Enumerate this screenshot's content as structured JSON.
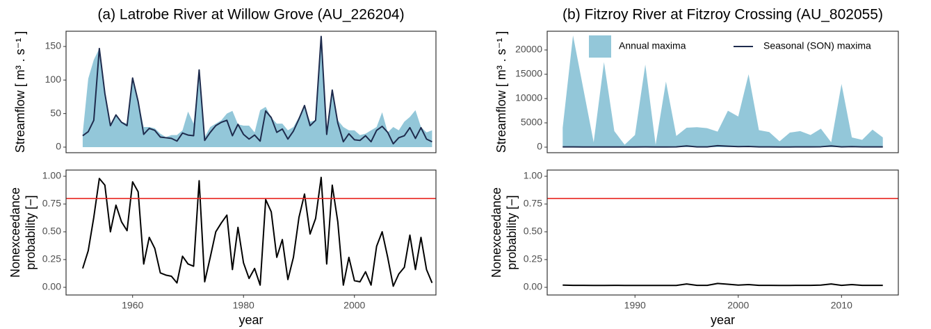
{
  "chart_data": [
    {
      "type": "line",
      "title": "(a) Latrobe River at Willow Grove (AU_226204)",
      "ylabel": "Streamflow [ m³ . s⁻¹ ]",
      "x": [
        1951,
        1952,
        1953,
        1954,
        1955,
        1956,
        1957,
        1958,
        1959,
        1960,
        1961,
        1962,
        1963,
        1964,
        1965,
        1966,
        1967,
        1968,
        1969,
        1970,
        1971,
        1972,
        1973,
        1974,
        1975,
        1976,
        1977,
        1978,
        1979,
        1980,
        1981,
        1982,
        1983,
        1984,
        1985,
        1986,
        1987,
        1988,
        1989,
        1990,
        1991,
        1992,
        1993,
        1994,
        1995,
        1996,
        1997,
        1998,
        1999,
        2000,
        2001,
        2002,
        2003,
        2004,
        2005,
        2006,
        2007,
        2008,
        2009,
        2010,
        2011,
        2012,
        2013,
        2014
      ],
      "series": [
        {
          "kind": "area",
          "color": "#93c7d9",
          "values": [
            20,
            102,
            130,
            147,
            85,
            35,
            48,
            38,
            35,
            103,
            70,
            30,
            30,
            28,
            20,
            15,
            18,
            18,
            25,
            53,
            35,
            115,
            15,
            30,
            35,
            40,
            50,
            54,
            34,
            32,
            32,
            22,
            55,
            60,
            44,
            35,
            35,
            25,
            30,
            45,
            62,
            38,
            40,
            165,
            20,
            85,
            40,
            30,
            25,
            25,
            18,
            20,
            25,
            30,
            52,
            22,
            30,
            25,
            38,
            45,
            55,
            30,
            22,
            25
          ]
        },
        {
          "kind": "line",
          "color": "#1e2b4d",
          "values": [
            17,
            23,
            40,
            147,
            80,
            32,
            48,
            37,
            32,
            103,
            68,
            19,
            28,
            25,
            15,
            14,
            13,
            9,
            21,
            18,
            17,
            115,
            10,
            22,
            32,
            37,
            40,
            17,
            34,
            19,
            12,
            18,
            9,
            54,
            44,
            22,
            27,
            12,
            24,
            42,
            62,
            32,
            40,
            165,
            19,
            85,
            36,
            8,
            20,
            11,
            10,
            17,
            8,
            25,
            31,
            22,
            5,
            14,
            17,
            29,
            13,
            29,
            12,
            8
          ]
        }
      ],
      "xlim": [
        1948,
        2014.7
      ],
      "ylim": [
        -8.3,
        172.7
      ],
      "yticks": [
        0,
        50,
        100,
        150
      ]
    },
    {
      "type": "line",
      "ylabel": [
        "Nonexceedance",
        "probability [−]"
      ],
      "xlabel": "year",
      "x": [
        1951,
        1952,
        1953,
        1954,
        1955,
        1956,
        1957,
        1958,
        1959,
        1960,
        1961,
        1962,
        1963,
        1964,
        1965,
        1966,
        1967,
        1968,
        1969,
        1970,
        1971,
        1972,
        1973,
        1974,
        1975,
        1976,
        1977,
        1978,
        1979,
        1980,
        1981,
        1982,
        1983,
        1984,
        1985,
        1986,
        1987,
        1988,
        1989,
        1990,
        1991,
        1992,
        1993,
        1994,
        1995,
        1996,
        1997,
        1998,
        1999,
        2000,
        2001,
        2002,
        2003,
        2004,
        2005,
        2006,
        2007,
        2008,
        2009,
        2010,
        2011,
        2012,
        2013,
        2014
      ],
      "series": [
        {
          "kind": "line",
          "color": "#000000",
          "values": [
            0.17,
            0.33,
            0.63,
            0.98,
            0.92,
            0.5,
            0.74,
            0.59,
            0.51,
            0.95,
            0.86,
            0.21,
            0.45,
            0.35,
            0.13,
            0.11,
            0.1,
            0.04,
            0.28,
            0.21,
            0.19,
            0.96,
            0.05,
            0.27,
            0.5,
            0.58,
            0.65,
            0.16,
            0.54,
            0.22,
            0.08,
            0.17,
            0.02,
            0.79,
            0.68,
            0.27,
            0.43,
            0.07,
            0.27,
            0.63,
            0.84,
            0.48,
            0.62,
            0.99,
            0.21,
            0.92,
            0.59,
            0.02,
            0.27,
            0.06,
            0.05,
            0.14,
            0.02,
            0.37,
            0.5,
            0.27,
            0.01,
            0.12,
            0.18,
            0.47,
            0.16,
            0.45,
            0.16,
            0.04
          ]
        }
      ],
      "hline": {
        "value": 0.8,
        "color": "#e8241f"
      },
      "xlim": [
        1948,
        2014.7
      ],
      "xticks": [
        1960,
        1980,
        2000
      ],
      "ylim": [
        -0.069,
        1.056
      ],
      "yticks": [
        {
          "value": 0,
          "label": "0.00"
        },
        {
          "value": 0.25,
          "label": "0.25"
        },
        {
          "value": 0.5,
          "label": "0.50"
        },
        {
          "value": 0.75,
          "label": "0.75"
        },
        {
          "value": 1,
          "label": "1.00"
        }
      ]
    },
    {
      "type": "line",
      "title": "(b) Fitzroy River at Fitzroy Crossing (AU_802055)",
      "ylabel": "Streamflow [ m³ . s⁻¹ ]",
      "x": [
        1983,
        1984,
        1985,
        1986,
        1987,
        1988,
        1989,
        1990,
        1991,
        1992,
        1993,
        1994,
        1995,
        1996,
        1997,
        1998,
        1999,
        2000,
        2001,
        2002,
        2003,
        2004,
        2005,
        2006,
        2007,
        2008,
        2009,
        2010,
        2011,
        2012,
        2013,
        2014
      ],
      "series": [
        {
          "kind": "area",
          "name": "Annual maxima",
          "color": "#93c7d9",
          "values": [
            4000,
            23000,
            12000,
            1000,
            17500,
            3300,
            500,
            2500,
            17000,
            500,
            13500,
            2300,
            4000,
            4100,
            3900,
            3200,
            7500,
            6300,
            15000,
            3500,
            3100,
            1200,
            3000,
            3300,
            2500,
            3800,
            1000,
            13000,
            2000,
            1500,
            3600,
            2000
          ]
        },
        {
          "kind": "line",
          "name": "Seasonal (SON) maxima",
          "color": "#1e2b4d",
          "values": [
            60,
            50,
            40,
            40,
            30,
            30,
            40,
            30,
            50,
            40,
            40,
            50,
            250,
            50,
            60,
            300,
            200,
            100,
            150,
            60,
            50,
            40,
            40,
            50,
            60,
            80,
            250,
            60,
            100,
            60,
            50,
            50
          ]
        }
      ],
      "legend": "top",
      "xlim": [
        1981.5,
        2015.5
      ],
      "ylim": [
        -1143,
        23857
      ],
      "yticks": [
        0,
        5000,
        10000,
        15000,
        20000
      ]
    },
    {
      "type": "line",
      "ylabel": [
        "Nonexceedance",
        "probability [−]"
      ],
      "xlabel": "year",
      "x": [
        1983,
        1984,
        1985,
        1986,
        1987,
        1988,
        1989,
        1990,
        1991,
        1992,
        1993,
        1994,
        1995,
        1996,
        1997,
        1998,
        1999,
        2000,
        2001,
        2002,
        2003,
        2004,
        2005,
        2006,
        2007,
        2008,
        2009,
        2010,
        2011,
        2012,
        2013,
        2014
      ],
      "series": [
        {
          "kind": "line",
          "color": "#000000",
          "values": [
            0.02,
            0.018,
            0.018,
            0.017,
            0.017,
            0.018,
            0.017,
            0.017,
            0.017,
            0.017,
            0.017,
            0.017,
            0.03,
            0.018,
            0.018,
            0.035,
            0.028,
            0.02,
            0.025,
            0.018,
            0.018,
            0.017,
            0.017,
            0.018,
            0.018,
            0.02,
            0.03,
            0.018,
            0.025,
            0.018,
            0.018,
            0.018
          ]
        }
      ],
      "hline": {
        "value": 0.8,
        "color": "#e8241f"
      },
      "xlim": [
        1981.5,
        2015.5
      ],
      "xticks": [
        1990,
        2000,
        2010
      ],
      "ylim": [
        -0.069,
        1.056
      ],
      "yticks": [
        {
          "value": 0,
          "label": "0.00"
        },
        {
          "value": 0.25,
          "label": "0.25"
        },
        {
          "value": 0.5,
          "label": "0.50"
        },
        {
          "value": 0.75,
          "label": "0.75"
        },
        {
          "value": 1,
          "label": "1.00"
        }
      ]
    }
  ]
}
